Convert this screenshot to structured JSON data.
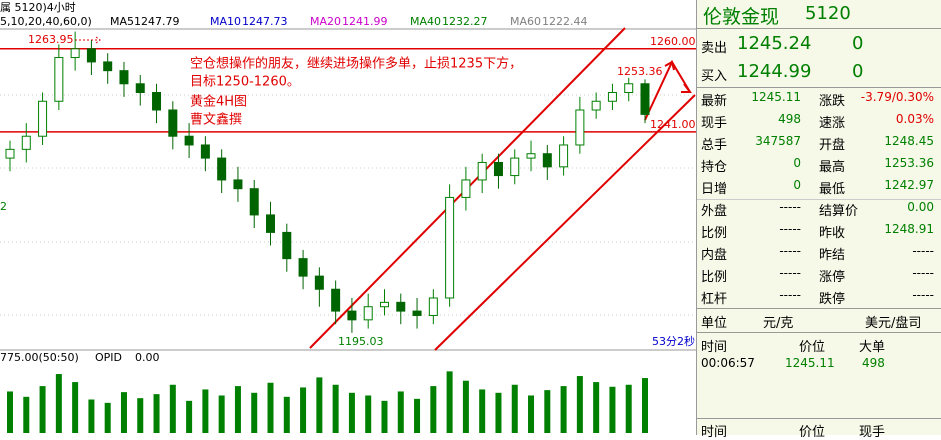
{
  "toolbar": {
    "symbol": "属 5120)4小时",
    "params": "5,10,20,40,60,0)"
  },
  "ma": [
    {
      "name": "MA5",
      "value": "1247.79",
      "color": "#000000"
    },
    {
      "name": "MA10",
      "value": "1247.73",
      "color": "#0000cc"
    },
    {
      "name": "MA20",
      "value": "1241.99",
      "color": "#cc00cc"
    },
    {
      "name": "MA40",
      "value": "1232.27",
      "color": "#008000"
    },
    {
      "name": "MA60",
      "value": "1222.44",
      "color": "#808080"
    }
  ],
  "chart": {
    "type": "candlestick",
    "ylim": [
      1191.1,
      1264.3
    ],
    "candles": [
      [
        1235,
        1239,
        1232,
        1237
      ],
      [
        1237,
        1243,
        1234,
        1240
      ],
      [
        1240,
        1250,
        1238,
        1248
      ],
      [
        1248,
        1261,
        1246,
        1258
      ],
      [
        1258,
        1263.95,
        1255,
        1260
      ],
      [
        1260,
        1262,
        1254,
        1257
      ],
      [
        1257,
        1259,
        1252,
        1255
      ],
      [
        1255,
        1257,
        1249,
        1252
      ],
      [
        1252,
        1254,
        1247,
        1250
      ],
      [
        1250,
        1252,
        1243,
        1246
      ],
      [
        1246,
        1248,
        1237,
        1240
      ],
      [
        1240,
        1243,
        1235,
        1238
      ],
      [
        1238,
        1240,
        1232,
        1235
      ],
      [
        1235,
        1237,
        1227,
        1230
      ],
      [
        1230,
        1233,
        1225,
        1228
      ],
      [
        1228,
        1230,
        1219,
        1222
      ],
      [
        1222,
        1225,
        1215,
        1218
      ],
      [
        1218,
        1220,
        1209,
        1212
      ],
      [
        1212,
        1214,
        1205,
        1208
      ],
      [
        1208,
        1210,
        1201,
        1205
      ],
      [
        1205,
        1207,
        1197,
        1200
      ],
      [
        1200,
        1203,
        1195.03,
        1198
      ],
      [
        1198,
        1204,
        1196,
        1201
      ],
      [
        1201,
        1205,
        1199,
        1202
      ],
      [
        1202,
        1204,
        1197,
        1200
      ],
      [
        1200,
        1203,
        1196,
        1199
      ],
      [
        1199,
        1205,
        1197,
        1203
      ],
      [
        1203,
        1229,
        1201,
        1226
      ],
      [
        1226,
        1233,
        1223,
        1230
      ],
      [
        1230,
        1236,
        1227,
        1234
      ],
      [
        1234,
        1236,
        1228,
        1231
      ],
      [
        1231,
        1237,
        1229,
        1235
      ],
      [
        1235,
        1239,
        1232,
        1236
      ],
      [
        1236,
        1238,
        1230,
        1233
      ],
      [
        1233,
        1240,
        1231,
        1238
      ],
      [
        1238,
        1249,
        1236,
        1246
      ],
      [
        1246,
        1250,
        1244,
        1248
      ],
      [
        1248,
        1252,
        1246,
        1250
      ],
      [
        1250,
        1253.36,
        1248,
        1252
      ],
      [
        1252,
        1253,
        1243,
        1245
      ]
    ],
    "up_color": "#008000",
    "down_color": "#006400",
    "level_color": "#e00000",
    "levels": [
      {
        "value": 1260,
        "label": "1260.00"
      },
      {
        "value": 1241,
        "label": "1241.00"
      }
    ],
    "high_label": "1263.95",
    "low_label": "1195.03",
    "last_high_label": "1253.36",
    "left_label": "2",
    "timer": "53分2秒",
    "note": [
      "空仓想操作的朋友，继续进场操作多单，止损1235下方，",
      "目标1250-1260。",
      "黄金4H图",
      "曹文鑫撰"
    ],
    "volume": {
      "header": "775.00(50:50)",
      "opid_name": "OPID",
      "opid": "0.00",
      "ylim": [
        0,
        1000
      ],
      "color": "#008000",
      "values": [
        620,
        540,
        700,
        880,
        760,
        500,
        450,
        610,
        520,
        580,
        720,
        480,
        650,
        560,
        700,
        600,
        750,
        540,
        680,
        830,
        720,
        600,
        560,
        480,
        620,
        510,
        700,
        920,
        780,
        650,
        600,
        720,
        560,
        640,
        700,
        850,
        760,
        690,
        720,
        820
      ]
    }
  },
  "panel": {
    "title": "伦敦金现",
    "code": "5120",
    "quotes": [
      [
        "卖出",
        "1245.24",
        "0"
      ],
      [
        "买入",
        "1244.99",
        "0"
      ]
    ],
    "rows": [
      [
        "最新",
        "1245.11",
        "涨跌",
        "-3.79/0.30%"
      ],
      [
        "现手",
        "498",
        "速涨",
        "0.03%"
      ],
      [
        "总手",
        "347587",
        "开盘",
        "1248.45"
      ],
      [
        "持仓",
        "0",
        "最高",
        "1253.36"
      ],
      [
        "日增",
        "0",
        "最低",
        "1242.97"
      ],
      [
        "外盘",
        "-----",
        "结算价",
        "0.00"
      ],
      [
        "比例",
        "-----",
        "昨收",
        "1248.91"
      ],
      [
        "内盘",
        "-----",
        "昨结",
        "-----"
      ],
      [
        "比例",
        "-----",
        "涨停",
        "-----"
      ],
      [
        "杠杆",
        "-----",
        "跌停",
        "-----"
      ]
    ],
    "unit": [
      "单位",
      "元/克",
      "美元/盘司"
    ],
    "ticks_header": [
      "时间",
      "价位",
      "大单"
    ],
    "ticks": [
      [
        "00:06:57",
        "1245.11",
        "498"
      ]
    ],
    "footer_header": [
      "时间",
      "价位",
      "现手"
    ]
  }
}
